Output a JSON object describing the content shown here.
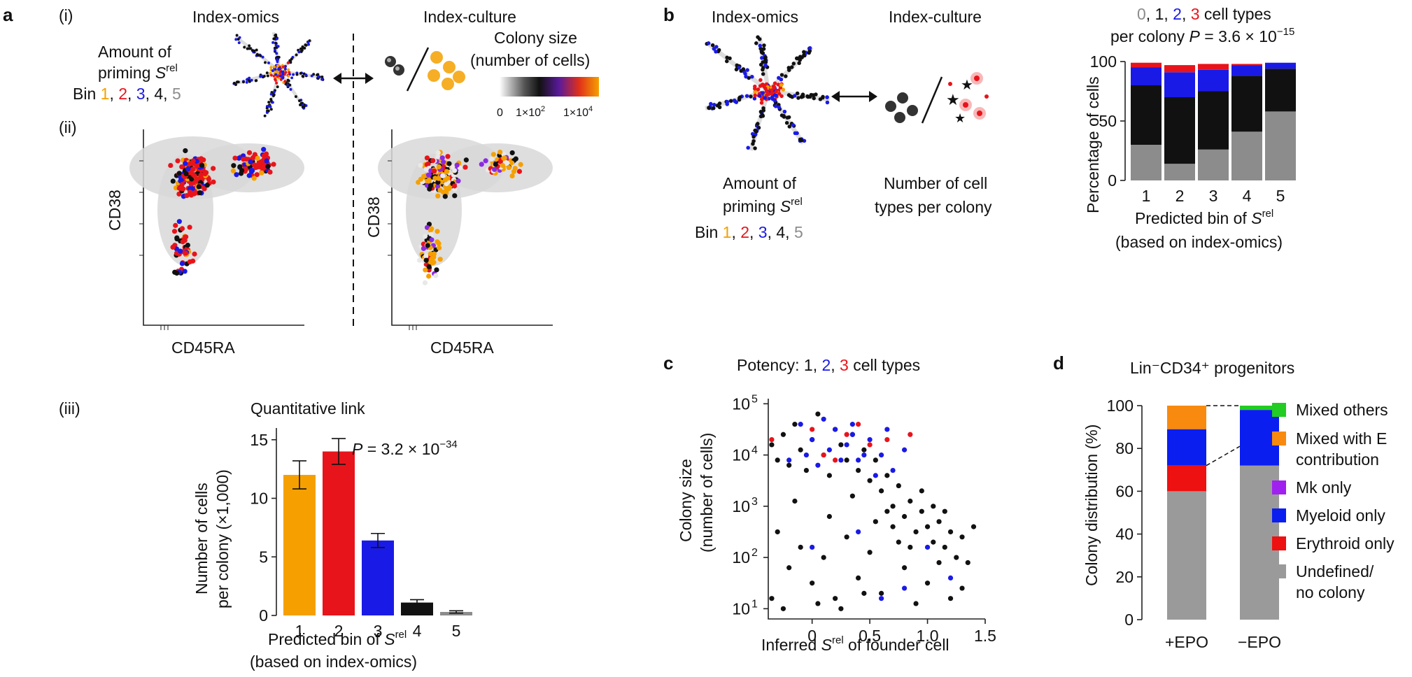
{
  "panel_labels": {
    "a": "a",
    "b": "b",
    "c": "c",
    "d": "d"
  },
  "panel_a": {
    "sub_i": "(i)",
    "sub_ii": "(ii)",
    "sub_iii": "(iii)",
    "title_omics": "Index-omics",
    "title_culture": "Index-culture",
    "priming_line1": "Amount of",
    "priming_line2": "priming ",
    "s_symbol": "S",
    "s_sup": "rel",
    "bin_prefix": "Bin ",
    "bins": [
      "1",
      "2",
      "3",
      "4",
      "5"
    ],
    "colony_size_line1": "Colony size",
    "colony_size_line2": "(number of cells)",
    "colorbar_ticks": [
      "0",
      "1×10",
      "1×10"
    ],
    "colorbar_exps": [
      "2",
      "4"
    ],
    "ylabel": "CD38",
    "xlabel": "CD45RA",
    "iii_title": "Quantitative link",
    "iii_ylabel1": "Number of cells",
    "iii_ylabel2": "per colony (×1,000)",
    "iii_xlabel1": "Predicted bin of ",
    "iii_xlabel2": "(based on index-omics)",
    "p_value": "P",
    "p_value_text": " = 3.2 × 10",
    "p_value_exp": "−34",
    "y_ticks": [
      "0",
      "5",
      "10",
      "15"
    ]
  },
  "panel_b": {
    "title_omics": "Index-omics",
    "title_culture": "Index-culture",
    "priming_line1": "Amount of",
    "priming_line2": "priming ",
    "bin_prefix": "Bin ",
    "number_line1": "Number of cell",
    "number_line2": "types per colony",
    "chart_title_line1_items": [
      "0",
      "1",
      "2",
      "3"
    ],
    "chart_title_line1_suffix": " cell types",
    "chart_title_line2": "per colony ",
    "p_value_text": " = 3.6 × 10",
    "p_value_exp": "−15",
    "ylabel": "Percentage of cells",
    "xlabel1": "Predicted bin of ",
    "xlabel2": "(based on index-omics)",
    "y_ticks": [
      "0",
      "50",
      "100"
    ]
  },
  "panel_c": {
    "title_prefix": "Potency: ",
    "title_items": [
      "1",
      "2",
      "3"
    ],
    "title_suffix": " cell types",
    "ylabel1": "Colony size",
    "ylabel2": "(number of cells)",
    "xlabel": "Inferred ",
    "xlabel_suffix": " of founder cell",
    "x_ticks": [
      "0",
      "0.5",
      "1.0",
      "1.5"
    ],
    "y_exps": [
      "1",
      "2",
      "3",
      "4",
      "5"
    ]
  },
  "panel_d": {
    "title": "Lin⁻CD34⁺ progenitors",
    "ylabel": "Colony distribution (%)",
    "y_ticks": [
      "0",
      "20",
      "40",
      "60",
      "80",
      "100"
    ],
    "legend": [
      "Mixed others",
      "Mixed with E",
      "contribution",
      "Mk only",
      "Myeloid only",
      "Erythroid only",
      "Undefined/",
      "no colony"
    ]
  },
  "colors": {
    "bin1": "#f5a000",
    "bin2": "#e8141b",
    "bin3": "#1a1ae6",
    "bin4": "#111111",
    "bin5": "#8c8c8c",
    "undefined": "#9a9a9a",
    "erythroid": "#ee1111",
    "myeloid": "#0a1ef0",
    "mk": "#a020f0",
    "mixedE": "#f88a10",
    "mixedOthers": "#22cc22"
  },
  "chart_data": [
    {
      "id": "a_iii",
      "type": "bar",
      "title": "Quantitative link",
      "categories": [
        "1",
        "2",
        "3",
        "4",
        "5"
      ],
      "values": [
        12.0,
        14.0,
        6.4,
        1.1,
        0.3
      ],
      "errors": [
        1.2,
        1.1,
        0.6,
        0.25,
        0.1
      ],
      "ylabel": "Number of cells per colony (×1,000)",
      "xlabel": "Predicted bin of Srel (based on index-omics)",
      "ylim": [
        0,
        16
      ]
    },
    {
      "id": "b",
      "type": "bar",
      "stacked": true,
      "categories": [
        "1",
        "2",
        "3",
        "4",
        "5"
      ],
      "series": [
        {
          "name": "0",
          "values": [
            30,
            14,
            26,
            41,
            58
          ]
        },
        {
          "name": "1",
          "values": [
            50,
            56,
            49,
            47,
            36
          ]
        },
        {
          "name": "2",
          "values": [
            15,
            21,
            18,
            9,
            5
          ]
        },
        {
          "name": "3",
          "values": [
            4,
            6,
            5,
            1,
            0
          ]
        }
      ],
      "ylabel": "Percentage of cells",
      "xlabel": "Predicted bin of Srel (based on index-omics)",
      "ylim": [
        0,
        100
      ]
    },
    {
      "id": "c",
      "type": "scatter",
      "xlabel": "Inferred Srel of founder cell",
      "ylabel": "Colony size (number of cells)",
      "xlim": [
        -0.38,
        1.5
      ],
      "ylim_log10": [
        0.8,
        5.1
      ],
      "log_scale_y": true,
      "series": [
        {
          "name": "1",
          "points": [
            [
              -0.35,
              4.2
            ],
            [
              -0.3,
              3.9
            ],
            [
              -0.25,
              4.4
            ],
            [
              -0.2,
              3.8
            ],
            [
              -0.15,
              4.6
            ],
            [
              -0.1,
              4.1
            ],
            [
              -0.05,
              3.7
            ],
            [
              0.0,
              4.3
            ],
            [
              0.05,
              4.8
            ],
            [
              0.1,
              4.0
            ],
            [
              0.15,
              3.6
            ],
            [
              0.2,
              4.5
            ],
            [
              0.25,
              4.2
            ],
            [
              0.3,
              3.9
            ],
            [
              0.35,
              4.4
            ],
            [
              0.4,
              3.7
            ],
            [
              0.45,
              4.1
            ],
            [
              0.5,
              3.5
            ],
            [
              0.55,
              3.9
            ],
            [
              0.6,
              3.3
            ],
            [
              0.65,
              3.6
            ],
            [
              0.7,
              3.0
            ],
            [
              0.75,
              3.4
            ],
            [
              0.8,
              2.8
            ],
            [
              0.85,
              3.1
            ],
            [
              0.9,
              2.5
            ],
            [
              0.95,
              2.9
            ],
            [
              1.0,
              2.6
            ],
            [
              1.05,
              2.3
            ],
            [
              1.1,
              2.7
            ],
            [
              1.15,
              2.2
            ],
            [
              1.2,
              2.5
            ],
            [
              1.25,
              2.0
            ],
            [
              1.3,
              2.4
            ],
            [
              1.35,
              1.9
            ],
            [
              1.4,
              2.6
            ],
            [
              -0.3,
              2.5
            ],
            [
              -0.2,
              1.8
            ],
            [
              -0.1,
              2.2
            ],
            [
              0.0,
              1.5
            ],
            [
              0.1,
              2.0
            ],
            [
              0.2,
              1.2
            ],
            [
              0.3,
              2.4
            ],
            [
              0.4,
              1.6
            ],
            [
              0.5,
              2.1
            ],
            [
              0.6,
              1.3
            ],
            [
              0.7,
              2.6
            ],
            [
              0.8,
              1.8
            ],
            [
              0.9,
              1.1
            ],
            [
              1.0,
              1.5
            ],
            [
              1.1,
              1.9
            ],
            [
              1.2,
              1.2
            ],
            [
              -0.35,
              1.2
            ],
            [
              -0.25,
              1.0
            ],
            [
              0.05,
              1.1
            ],
            [
              0.25,
              1.0
            ],
            [
              0.45,
              1.3
            ],
            [
              0.65,
              2.9
            ],
            [
              0.85,
              2.2
            ],
            [
              1.05,
              3.0
            ],
            [
              -0.15,
              3.1
            ],
            [
              0.15,
              2.8
            ],
            [
              0.35,
              3.2
            ],
            [
              0.55,
              2.7
            ],
            [
              0.75,
              2.3
            ],
            [
              0.95,
              3.3
            ],
            [
              1.15,
              2.9
            ],
            [
              1.3,
              1.4
            ]
          ]
        },
        {
          "name": "2",
          "points": [
            [
              -0.1,
              4.6
            ],
            [
              0.0,
              4.3
            ],
            [
              0.1,
              4.7
            ],
            [
              0.15,
              4.1
            ],
            [
              0.2,
              4.5
            ],
            [
              0.3,
              4.2
            ],
            [
              0.35,
              4.6
            ],
            [
              0.4,
              3.9
            ],
            [
              0.5,
              4.3
            ],
            [
              0.6,
              4.0
            ],
            [
              0.65,
              4.5
            ],
            [
              0.7,
              3.7
            ],
            [
              0.8,
              4.1
            ],
            [
              -0.2,
              3.9
            ],
            [
              0.05,
              3.8
            ],
            [
              0.25,
              3.9
            ],
            [
              0.45,
              4.0
            ],
            [
              0.55,
              3.6
            ],
            [
              0.0,
              2.2
            ],
            [
              0.4,
              2.5
            ],
            [
              0.8,
              1.4
            ],
            [
              1.0,
              2.2
            ],
            [
              1.2,
              1.6
            ],
            [
              0.6,
              1.2
            ],
            [
              -0.05,
              4.0
            ],
            [
              0.35,
              4.4
            ]
          ]
        },
        {
          "name": "3",
          "points": [
            [
              -0.35,
              4.3
            ],
            [
              0.0,
              4.5
            ],
            [
              0.2,
              3.9
            ],
            [
              0.3,
              4.4
            ],
            [
              0.5,
              4.2
            ],
            [
              0.65,
              4.3
            ],
            [
              0.85,
              4.4
            ],
            [
              0.4,
              4.6
            ],
            [
              0.1,
              4.0
            ]
          ]
        }
      ]
    },
    {
      "id": "d",
      "type": "bar",
      "stacked": true,
      "categories": [
        "+EPO",
        "−EPO"
      ],
      "series": [
        {
          "name": "Undefined/ no colony",
          "values": [
            60,
            72
          ]
        },
        {
          "name": "Erythroid only",
          "values": [
            12,
            0
          ]
        },
        {
          "name": "Myeloid only",
          "values": [
            17,
            26
          ]
        },
        {
          "name": "Mk only",
          "values": [
            0,
            0
          ]
        },
        {
          "name": "Mixed with E contribution",
          "values": [
            11,
            0
          ]
        },
        {
          "name": "Mixed others",
          "values": [
            0,
            2
          ]
        }
      ],
      "ylabel": "Colony distribution (%)",
      "ylim": [
        0,
        100
      ]
    }
  ]
}
